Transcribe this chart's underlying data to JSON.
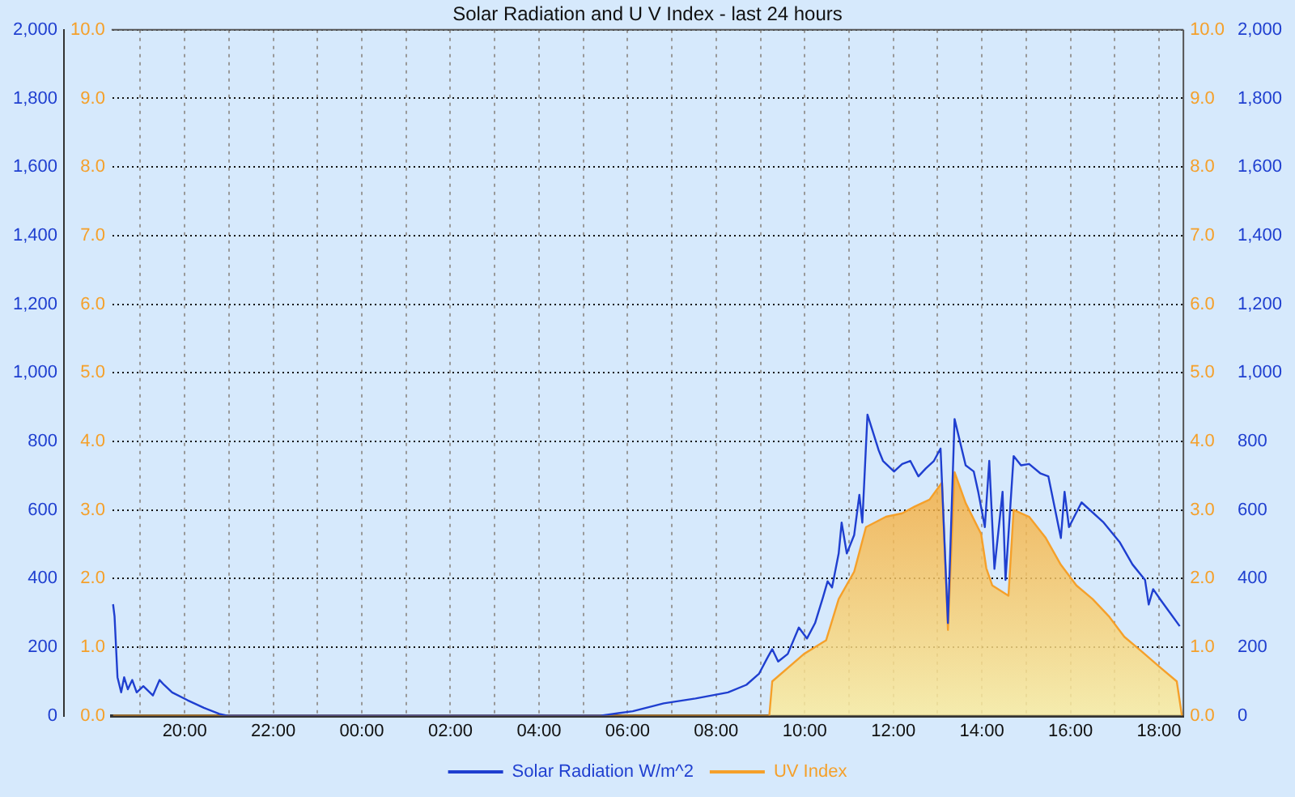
{
  "chart_data": {
    "type": "line",
    "title": "Solar Radiation and U V Index - last 24 hours",
    "legend": "bottom",
    "grid": true,
    "marker": "none",
    "line_style": "solid",
    "xlim": [
      "--06-01T18:21",
      "--06-02T18:33"
    ],
    "xticks": [
      {
        "value": "--06-01T19:00",
        "label": null
      },
      {
        "value": "--06-01T20:00",
        "label": "20:00"
      },
      {
        "value": "--06-01T21:00",
        "label": null
      },
      {
        "value": "--06-01T22:00",
        "label": "22:00"
      },
      {
        "value": "--06-01T23:00",
        "label": null
      },
      {
        "value": "--06-02T00:00",
        "label": "00:00"
      },
      {
        "value": "--06-02T01:00",
        "label": null
      },
      {
        "value": "--06-02T02:00",
        "label": "02:00"
      },
      {
        "value": "--06-02T03:00",
        "label": null
      },
      {
        "value": "--06-02T04:00",
        "label": "04:00"
      },
      {
        "value": "--06-02T05:00",
        "label": null
      },
      {
        "value": "--06-02T06:00",
        "label": "06:00"
      },
      {
        "value": "--06-02T07:00",
        "label": null
      },
      {
        "value": "--06-02T08:00",
        "label": "08:00"
      },
      {
        "value": "--06-02T09:00",
        "label": null
      },
      {
        "value": "--06-02T10:00",
        "label": "10:00"
      },
      {
        "value": "--06-02T11:00",
        "label": null
      },
      {
        "value": "--06-02T12:00",
        "label": "12:00"
      },
      {
        "value": "--06-02T13:00",
        "label": null
      },
      {
        "value": "--06-02T14:00",
        "label": "14:00"
      },
      {
        "value": "--06-02T15:00",
        "label": null
      },
      {
        "value": "--06-02T16:00",
        "label": "16:00"
      },
      {
        "value": "--06-02T17:00",
        "label": null
      },
      {
        "value": "--06-02T18:00",
        "label": "18:00"
      }
    ],
    "ylim": [
      0,
      2000
    ],
    "yticks": [
      0,
      200,
      400,
      600,
      800,
      {
        "value": 1000,
        "label": "1,000"
      },
      {
        "value": 1200,
        "label": "1,200"
      },
      {
        "value": 1400,
        "label": "1,400"
      },
      {
        "value": 1600,
        "label": "1,600"
      },
      {
        "value": 1800,
        "label": "1,800"
      },
      {
        "value": 2000,
        "label": "2,000"
      }
    ],
    "y2lim": [
      0,
      10
    ],
    "y2ticks": [
      {
        "value": 0,
        "label": "0.0"
      },
      {
        "value": 1,
        "label": "1.0"
      },
      {
        "value": 2,
        "label": "2.0"
      },
      {
        "value": 3,
        "label": "3.0"
      },
      {
        "value": 4,
        "label": "4.0"
      },
      {
        "value": 5,
        "label": "5.0"
      },
      {
        "value": 6,
        "label": "6.0"
      },
      {
        "value": 7,
        "label": "7.0"
      },
      {
        "value": 8,
        "label": "8.0"
      },
      {
        "value": 9,
        "label": "9.0"
      },
      {
        "value": 10,
        "label": "10.0"
      }
    ],
    "y3lim": [
      0,
      2000
    ],
    "y3ticks": [
      0,
      200,
      400,
      600,
      800,
      {
        "value": 1000,
        "label": "1,000"
      },
      {
        "value": 1200,
        "label": "1,200"
      },
      {
        "value": 1400,
        "label": "1,400"
      },
      {
        "value": 1600,
        "label": "1,600"
      },
      {
        "value": 1800,
        "label": "1,800"
      },
      {
        "value": 2000,
        "label": "2,000"
      }
    ],
    "series": [
      {
        "name": "Solar Radiation W/m^2",
        "type": "line",
        "color": "#1f3fd0",
        "x": [
          "--06-01T18:23",
          "--06-01T18:25",
          "--06-01T18:29",
          "--06-01T18:34",
          "--06-01T18:38",
          "--06-01T18:43",
          "--06-01T18:49",
          "--06-01T18:55",
          "--06-01T19:04",
          "--06-01T19:17",
          "--06-01T19:26",
          "--06-01T19:32",
          "--06-01T19:43",
          "--06-01T20:04",
          "--06-01T20:26",
          "--06-01T20:47",
          "--06-01T20:58",
          "--06-02T05:23",
          "--06-02T06:07",
          "--06-02T06:49",
          "--06-02T07:32",
          "--06-02T08:16",
          "--06-02T08:41",
          "--06-02T08:58",
          "--06-02T09:09",
          "--06-02T09:16",
          "--06-02T09:24",
          "--06-02T09:37",
          "--06-02T09:52",
          "--06-02T10:03",
          "--06-02T10:14",
          "--06-02T10:25",
          "--06-02T10:31",
          "--06-02T10:37",
          "--06-02T10:46",
          "--06-02T10:50",
          "--06-02T10:57",
          "--06-02T11:07",
          "--06-02T11:14",
          "--06-02T11:18",
          "--06-02T11:25",
          "--06-02T11:40",
          "--06-02T11:46",
          "--06-02T12:01",
          "--06-02T12:12",
          "--06-02T12:23",
          "--06-02T12:34",
          "--06-02T12:44",
          "--06-02T12:55",
          "--06-02T13:04",
          "--06-02T13:14",
          "--06-02T13:23",
          "--06-02T13:38",
          "--06-02T13:49",
          "--06-02T13:55",
          "--06-02T14:04",
          "--06-02T14:10",
          "--06-02T14:17",
          "--06-02T14:28",
          "--06-02T14:32",
          "--06-02T14:43",
          "--06-02T14:53",
          "--06-02T15:04",
          "--06-02T15:19",
          "--06-02T15:30",
          "--06-02T15:47",
          "--06-02T15:52",
          "--06-02T15:58",
          "--06-02T16:15",
          "--06-02T16:45",
          "--06-02T17:07",
          "--06-02T17:24",
          "--06-02T17:41",
          "--06-02T17:46",
          "--06-02T17:52",
          "--06-02T18:02",
          "--06-02T18:28"
        ],
        "values": [
          325,
          290,
          112,
          68,
          112,
          77,
          104,
          68,
          86,
          59,
          104,
          90,
          68,
          45,
          23,
          5,
          0,
          0,
          13,
          36,
          50,
          68,
          90,
          122,
          167,
          194,
          158,
          180,
          257,
          225,
          270,
          347,
          392,
          374,
          473,
          563,
          473,
          527,
          644,
          563,
          878,
          775,
          743,
          712,
          734,
          743,
          698,
          721,
          743,
          779,
          270,
          865,
          730,
          712,
          653,
          550,
          743,
          428,
          653,
          396,
          757,
          730,
          734,
          707,
          698,
          518,
          653,
          550,
          622,
          563,
          505,
          441,
          396,
          324,
          369,
          338,
          261
        ]
      },
      {
        "name": "UV Index",
        "type": "area",
        "axis": "y2",
        "color": "#f5a02a",
        "x": [
          "--06-01T18:23",
          "--06-02T09:12",
          "--06-02T09:16",
          "--06-02T09:59",
          "--06-02T10:29",
          "--06-02T10:46",
          "--06-02T11:07",
          "--06-02T11:23",
          "--06-02T11:50",
          "--06-02T12:12",
          "--06-02T12:29",
          "--06-02T12:49",
          "--06-02T13:06",
          "--06-02T13:14",
          "--06-02T13:23",
          "--06-02T13:38",
          "--06-02T13:59",
          "--06-02T14:06",
          "--06-02T14:14",
          "--06-02T14:36",
          "--06-02T14:43",
          "--06-02T15:04",
          "--06-02T15:26",
          "--06-02T15:47",
          "--06-02T16:08",
          "--06-02T16:30",
          "--06-02T16:52",
          "--06-02T17:13",
          "--06-02T17:35",
          "--06-02T18:02",
          "--06-02T18:24",
          "--06-02T18:31"
        ],
        "values": [
          0,
          0,
          0.5,
          0.9,
          1.1,
          1.7,
          2.1,
          2.75,
          2.9,
          2.95,
          3.05,
          3.15,
          3.4,
          1.25,
          3.55,
          3.1,
          2.65,
          2.15,
          1.9,
          1.75,
          3.0,
          2.9,
          2.6,
          2.2,
          1.9,
          1.7,
          1.45,
          1.15,
          0.95,
          0.7,
          0.5,
          0
        ]
      }
    ]
  }
}
